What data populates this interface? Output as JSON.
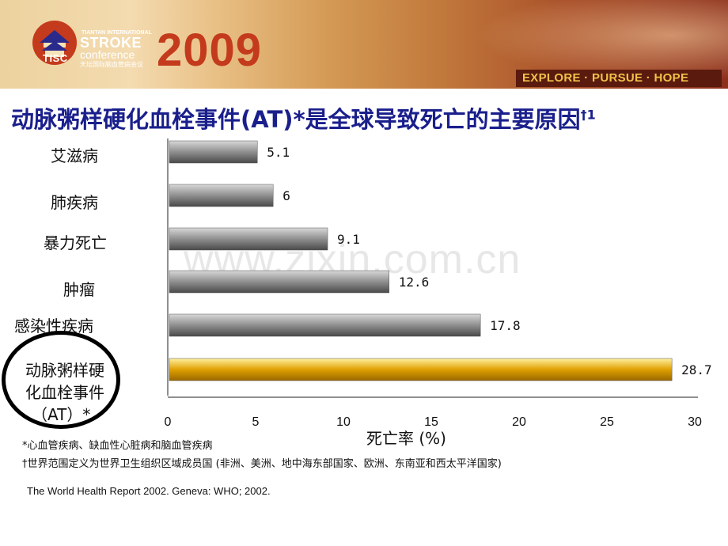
{
  "banner": {
    "logo_abbr": "TISC",
    "conf_line1": "TIANTAN INTERNATIONAL",
    "conf_line2": "STROKE",
    "conf_line3": "conference",
    "conf_line4": "天坛国际脑血管病会议",
    "year": "2009",
    "tagline": "EXPLORE · PURSUE · HOPE"
  },
  "slide": {
    "title": "动脉粥样硬化血栓事件(AT)*是全球导致死亡的主要原因",
    "title_sup": "†1"
  },
  "watermark": "www.zixin.com.cn",
  "chart_data": {
    "type": "bar",
    "orientation": "horizontal",
    "categories": [
      "艾滋病",
      "肺疾病",
      "暴力死亡",
      "肿瘤",
      "感染性疾病",
      "动脉粥样硬化血栓事件（AT）*"
    ],
    "category_lines": [
      [
        "艾滋病"
      ],
      [
        "肺疾病"
      ],
      [
        "暴力死亡"
      ],
      [
        "肿瘤"
      ],
      [
        "感染性疾病"
      ],
      [
        "动脉粥样硬",
        "化血栓事件",
        "（AT）*"
      ]
    ],
    "values": [
      5.1,
      6,
      9.1,
      12.6,
      17.8,
      28.7
    ],
    "value_labels": [
      "5.1",
      "6",
      "9.1",
      "12.6",
      "17.8",
      "28.7"
    ],
    "highlighted_index": 5,
    "xlabel": "死亡率 (%)",
    "xlim": [
      0,
      30
    ],
    "xticks": [
      0,
      5,
      10,
      15,
      20,
      25,
      30
    ],
    "colors": {
      "bar": "#8f8f8f",
      "highlight": "#e0a000"
    }
  },
  "footnotes": {
    "line1": "*心血管疾病、缺血性心脏病和脑血管疾病",
    "line2": "†世界范围定义为世界卫生组织区域成员国 (非洲、美洲、地中海东部国家、欧洲、东南亚和西太平洋国家)",
    "reference": "The World Health Report 2002. Geneva: WHO; 2002."
  }
}
